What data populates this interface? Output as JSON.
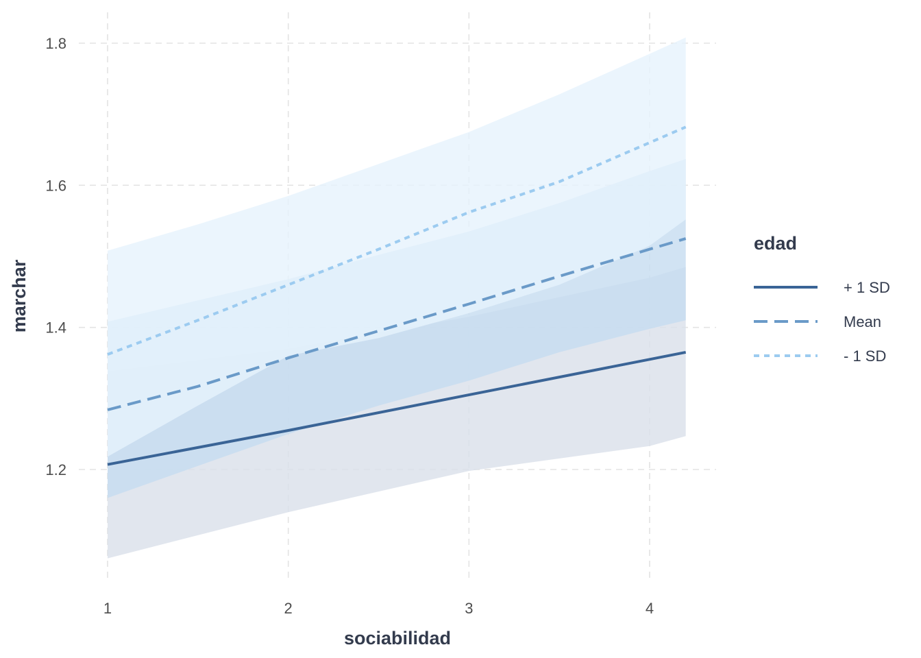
{
  "chart_data": {
    "type": "line",
    "xlabel": "sociabilidad",
    "ylabel": "marchar",
    "xlim": [
      1,
      4.2
    ],
    "ylim": [
      1.05,
      1.83
    ],
    "x_ticks": [
      1,
      2,
      3,
      4
    ],
    "x_tick_labels": [
      "1",
      "2",
      "3",
      "4"
    ],
    "y_ticks": [
      1.2,
      1.4,
      1.6,
      1.8
    ],
    "y_tick_labels": [
      "1.2",
      "1.4",
      "1.6",
      "1.8"
    ],
    "grid": true,
    "grid_style": "dashed",
    "legend": {
      "title": "edad",
      "position": "right"
    },
    "series": [
      {
        "name": "+ 1 SD",
        "color": "#3a6496",
        "band_color": "#d9e0ea",
        "linestyle": "solid",
        "x": [
          1,
          2,
          3,
          4,
          4.2
        ],
        "values": [
          1.207,
          1.255,
          1.305,
          1.355,
          1.365
        ],
        "lower": [
          1.075,
          1.14,
          1.198,
          1.233,
          1.247
        ],
        "upper": [
          1.338,
          1.37,
          1.415,
          1.47,
          1.485
        ]
      },
      {
        "name": "Mean",
        "color": "#6a9ac8",
        "band_color": "#c6dcf0",
        "linestyle": "dashed",
        "x": [
          1,
          1.5,
          2,
          2.5,
          3,
          3.5,
          4,
          4.2
        ],
        "values": [
          1.284,
          1.317,
          1.357,
          1.395,
          1.433,
          1.472,
          1.51,
          1.525
        ],
        "lower": [
          1.16,
          1.205,
          1.25,
          1.29,
          1.325,
          1.365,
          1.398,
          1.41
        ],
        "upper": [
          1.408,
          1.438,
          1.468,
          1.502,
          1.535,
          1.575,
          1.62,
          1.637
        ]
      },
      {
        "name": "- 1 SD",
        "color": "#9ccbf0",
        "band_color": "#e6f2fc",
        "linestyle": "dotted",
        "x": [
          1,
          1.5,
          2,
          2.5,
          3,
          3.5,
          4,
          4.2
        ],
        "values": [
          1.362,
          1.41,
          1.46,
          1.51,
          1.562,
          1.605,
          1.66,
          1.682
        ],
        "lower": [
          1.218,
          1.29,
          1.36,
          1.385,
          1.42,
          1.46,
          1.515,
          1.552
        ],
        "upper": [
          1.508,
          1.545,
          1.585,
          1.63,
          1.675,
          1.728,
          1.785,
          1.808
        ]
      }
    ]
  }
}
